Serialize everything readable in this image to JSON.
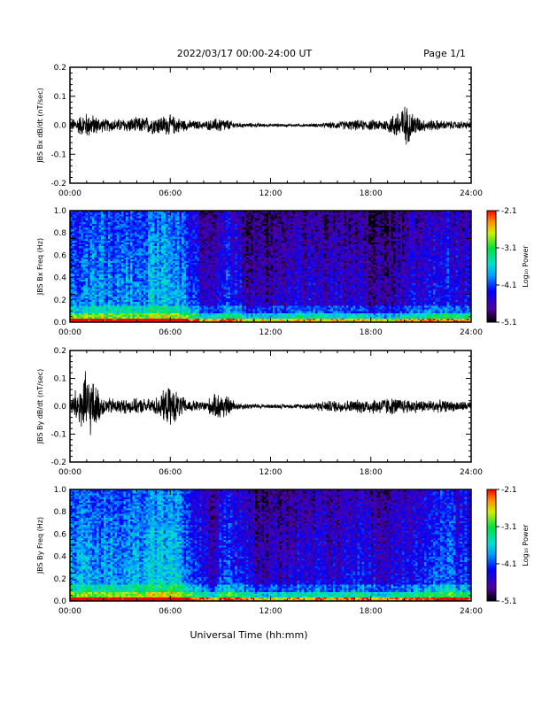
{
  "header": {
    "date_label": "2022/03/17  00:00-24:00 UT",
    "page_label": "Page 1/1"
  },
  "x_axis": {
    "label": "Universal Time (hh:mm)",
    "ticks": [
      "00:00",
      "06:00",
      "12:00",
      "18:00",
      "24:00"
    ],
    "range_hours": [
      0,
      24
    ]
  },
  "chart_data": [
    {
      "type": "line",
      "ylabel": "JBS Bx dB/dt (nT/sec)",
      "ylim": [
        -0.2,
        0.2
      ],
      "yticks": [
        "0.2",
        "0.1",
        "0.0",
        "-0.1",
        "-0.2"
      ],
      "x_hours": [
        0,
        1,
        2,
        3,
        4,
        5,
        6,
        7,
        8,
        9,
        10,
        11,
        12,
        13,
        14,
        15,
        16,
        17,
        18,
        19,
        20,
        21,
        22,
        23,
        24
      ],
      "amplitude": [
        0.02,
        0.05,
        0.025,
        0.025,
        0.03,
        0.035,
        0.04,
        0.02,
        0.015,
        0.03,
        0.01,
        0.008,
        0.006,
        0.005,
        0.005,
        0.008,
        0.015,
        0.02,
        0.02,
        0.025,
        0.08,
        0.025,
        0.02,
        0.015,
        0.015
      ],
      "color": "#000000"
    },
    {
      "type": "heatmap",
      "ylabel": "JBS Bx Freq (Hz)",
      "ylim": [
        0,
        1.0
      ],
      "yticks": [
        "1.0",
        "0.8",
        "0.6",
        "0.4",
        "0.2",
        "0.0"
      ],
      "colorbar": {
        "label": "Log₁₀ Power",
        "ticks": [
          "-2.1",
          "-3.1",
          "-4.1",
          "-5.1"
        ],
        "range": [
          -5.1,
          -2.1
        ]
      },
      "hourly_mean_log_power": [
        -4.0,
        -3.9,
        -3.95,
        -3.9,
        -3.85,
        -3.7,
        -3.8,
        -4.3,
        -4.7,
        -4.2,
        -4.6,
        -4.7,
        -4.6,
        -4.5,
        -4.5,
        -4.6,
        -4.5,
        -4.6,
        -4.7,
        -4.6,
        -4.5,
        -4.3,
        -4.3,
        -4.4
      ]
    },
    {
      "type": "line",
      "ylabel": "JBS By dB/dt (nT/sec)",
      "ylim": [
        -0.2,
        0.2
      ],
      "yticks": [
        "0.2",
        "0.1",
        "0.0",
        "-0.1",
        "-0.2"
      ],
      "x_hours": [
        0,
        1,
        2,
        3,
        4,
        5,
        6,
        7,
        8,
        9,
        10,
        11,
        12,
        13,
        14,
        15,
        16,
        17,
        18,
        19,
        20,
        21,
        22,
        23,
        24
      ],
      "amplitude": [
        0.03,
        0.14,
        0.035,
        0.03,
        0.03,
        0.03,
        0.08,
        0.025,
        0.02,
        0.06,
        0.015,
        0.01,
        0.008,
        0.008,
        0.01,
        0.02,
        0.025,
        0.025,
        0.03,
        0.035,
        0.03,
        0.025,
        0.025,
        0.02,
        0.02
      ],
      "color": "#000000"
    },
    {
      "type": "heatmap",
      "ylabel": "JBS By Freq (Hz)",
      "ylim": [
        0,
        1.0
      ],
      "yticks": [
        "1.0",
        "0.8",
        "0.6",
        "0.4",
        "0.2",
        "0.0"
      ],
      "colorbar": {
        "label": "Log₁₀ Power",
        "ticks": [
          "-2.1",
          "-3.1",
          "-4.1",
          "-5.1"
        ],
        "range": [
          -5.1,
          -2.1
        ]
      },
      "hourly_mean_log_power": [
        -3.8,
        -3.8,
        -3.85,
        -3.8,
        -3.75,
        -3.6,
        -3.7,
        -4.2,
        -4.5,
        -4.0,
        -4.4,
        -4.6,
        -4.6,
        -4.5,
        -4.4,
        -4.5,
        -4.4,
        -4.4,
        -4.5,
        -4.4,
        -4.3,
        -4.1,
        -4.1,
        -4.2
      ]
    }
  ]
}
